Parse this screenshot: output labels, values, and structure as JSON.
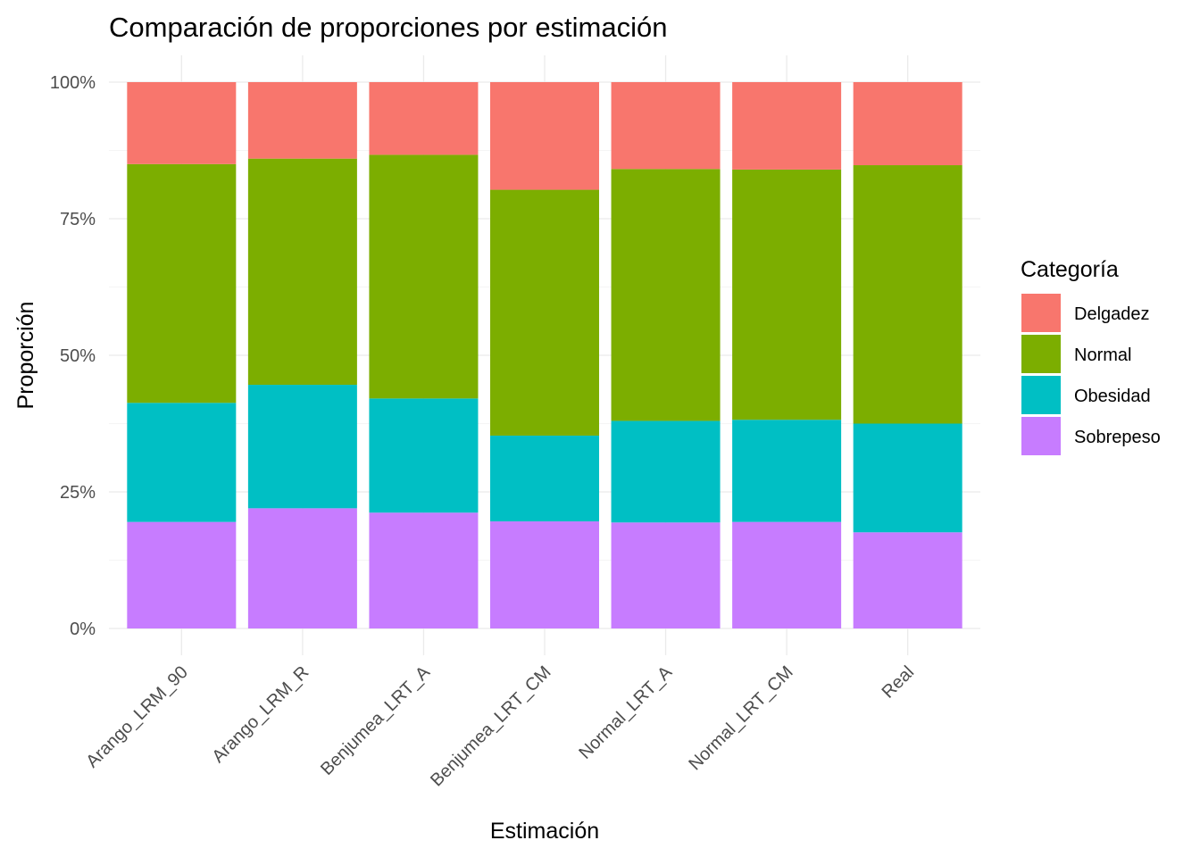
{
  "chart_data": {
    "type": "bar",
    "stacked": true,
    "normalized": true,
    "title": "Comparación de proporciones por estimación",
    "xlabel": "Estimación",
    "ylabel": "Proporción",
    "ylim": [
      0,
      1
    ],
    "y_ticks": [
      "0%",
      "25%",
      "50%",
      "75%",
      "100%"
    ],
    "grid": true,
    "legend": {
      "title": "Categoría",
      "position": "right"
    },
    "categories": [
      "Arango_LRM_90",
      "Arango_LRM_R",
      "Benjumea_LRT_A",
      "Benjumea_LRT_CM",
      "Normal_LRT_A",
      "Normal_LRT_CM",
      "Real"
    ],
    "series": [
      {
        "name": "Delgadez",
        "color": "#F8766D",
        "values": [
          0.15,
          0.14,
          0.133,
          0.197,
          0.159,
          0.16,
          0.152
        ]
      },
      {
        "name": "Normal",
        "color": "#7CAE00",
        "values": [
          0.437,
          0.414,
          0.446,
          0.45,
          0.461,
          0.458,
          0.473
        ]
      },
      {
        "name": "Obesidad",
        "color": "#00BFC4",
        "values": [
          0.218,
          0.226,
          0.209,
          0.157,
          0.186,
          0.187,
          0.199
        ]
      },
      {
        "name": "Sobrepeso",
        "color": "#C77CFF",
        "values": [
          0.195,
          0.22,
          0.212,
          0.196,
          0.194,
          0.195,
          0.176
        ]
      }
    ]
  }
}
